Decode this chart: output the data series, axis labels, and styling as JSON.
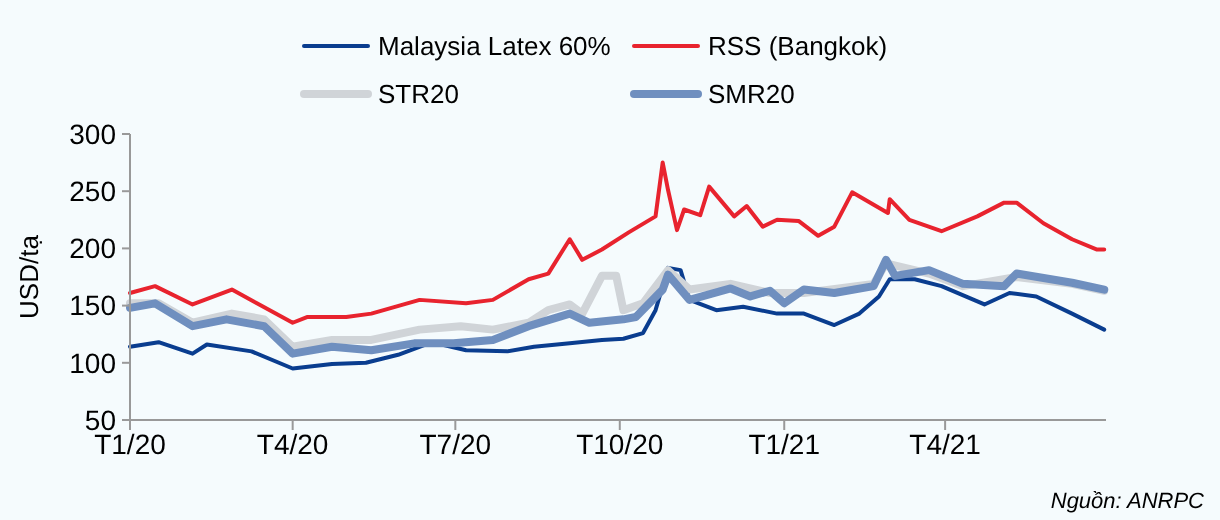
{
  "chart_data": {
    "type": "line",
    "ylabel": "USD/tạ",
    "legend": "top",
    "grid": false,
    "xlim": [
      "2020-01-01",
      "2021-06-30"
    ],
    "xticks": [
      {
        "value": "2020-01-01",
        "label": "T1/20"
      },
      {
        "value": "2020-04-01",
        "label": "T4/20"
      },
      {
        "value": "2020-07-01",
        "label": "T7/20"
      },
      {
        "value": "2020-10-01",
        "label": "T10/20"
      },
      {
        "value": "2021-01-01",
        "label": "T1/21"
      },
      {
        "value": "2021-04-01",
        "label": "T4/21"
      }
    ],
    "ylim": [
      50,
      300
    ],
    "yticks": [
      50,
      100,
      150,
      200,
      250,
      300
    ],
    "annotations": [
      "Nguồn: ANRPC"
    ],
    "series": [
      {
        "name": "Malaysia Latex 60%",
        "color": "#0a3d8f",
        "x": [
          "2020-01-01",
          "2020-01-17",
          "2020-02-05",
          "2020-02-13",
          "2020-03-09",
          "2020-04-01",
          "2020-04-23",
          "2020-05-12",
          "2020-05-30",
          "2020-06-18",
          "2020-07-07",
          "2020-07-30",
          "2020-08-14",
          "2020-09-03",
          "2020-09-21",
          "2020-10-03",
          "2020-10-14",
          "2020-10-21",
          "2020-10-28",
          "2020-11-04",
          "2020-11-09",
          "2020-11-24",
          "2020-12-09",
          "2020-12-28",
          "2021-01-12",
          "2021-01-29",
          "2021-02-12",
          "2021-02-23",
          "2021-03-01",
          "2021-03-15",
          "2021-03-30",
          "2021-04-23",
          "2021-05-07",
          "2021-05-22",
          "2021-06-11",
          "2021-06-29"
        ],
        "values": [
          114,
          118,
          108,
          116,
          110,
          95,
          99,
          100,
          107,
          118,
          111,
          110,
          114,
          117,
          120,
          121,
          126,
          146,
          183,
          181,
          155,
          146,
          149,
          143,
          143,
          133,
          143,
          158,
          173,
          173,
          167,
          151,
          161,
          158,
          143,
          129
        ]
      },
      {
        "name": "RSS (Bangkok)",
        "color": "#e8232e",
        "x": [
          "2020-01-01",
          "2020-01-15",
          "2020-02-05",
          "2020-02-27",
          "2020-03-12",
          "2020-04-01",
          "2020-04-09",
          "2020-05-01",
          "2020-05-15",
          "2020-06-11",
          "2020-07-07",
          "2020-07-22",
          "2020-08-11",
          "2020-08-22",
          "2020-09-03",
          "2020-09-10",
          "2020-09-21",
          "2020-10-06",
          "2020-10-21",
          "2020-10-25",
          "2020-10-28",
          "2020-11-02",
          "2020-11-06",
          "2020-11-15",
          "2020-11-20",
          "2020-12-04",
          "2020-12-11",
          "2020-12-20",
          "2020-12-28",
          "2021-01-09",
          "2021-01-20",
          "2021-01-29",
          "2021-02-08",
          "2021-02-28",
          "2021-03-01",
          "2021-03-12",
          "2021-03-30",
          "2021-04-19",
          "2021-05-04",
          "2021-05-11",
          "2021-05-26",
          "2021-06-11",
          "2021-06-25",
          "2021-06-29"
        ],
        "values": [
          161,
          167,
          151,
          164,
          152,
          135,
          140,
          140,
          143,
          155,
          152,
          155,
          173,
          178,
          208,
          190,
          199,
          214,
          228,
          275,
          251,
          216,
          234,
          229,
          254,
          228,
          237,
          219,
          225,
          224,
          211,
          219,
          249,
          231,
          243,
          225,
          215,
          228,
          240,
          240,
          222,
          208,
          199,
          199
        ]
      },
      {
        "name": "STR20",
        "color": "#d0d4d8",
        "x": [
          "2020-01-01",
          "2020-01-17",
          "2020-02-05",
          "2020-02-27",
          "2020-03-16",
          "2020-04-01",
          "2020-04-23",
          "2020-05-15",
          "2020-06-11",
          "2020-07-04",
          "2020-07-22",
          "2020-08-11",
          "2020-08-22",
          "2020-09-03",
          "2020-09-10",
          "2020-09-21",
          "2020-09-29",
          "2020-10-03",
          "2020-10-14",
          "2020-10-28",
          "2020-11-09",
          "2020-12-02",
          "2020-12-24",
          "2021-01-12",
          "2021-02-20",
          "2021-02-27",
          "2021-03-23",
          "2021-04-11",
          "2021-05-11",
          "2021-06-11",
          "2021-06-29"
        ],
        "values": [
          152,
          152,
          135,
          143,
          138,
          114,
          120,
          120,
          129,
          132,
          129,
          135,
          146,
          151,
          143,
          176,
          176,
          146,
          152,
          181,
          164,
          169,
          161,
          161,
          169,
          187,
          178,
          167,
          175,
          169,
          163
        ]
      },
      {
        "name": "SMR20",
        "color": "#6f8fbf",
        "x": [
          "2020-01-01",
          "2020-01-15",
          "2020-02-05",
          "2020-02-24",
          "2020-03-16",
          "2020-04-01",
          "2020-04-23",
          "2020-05-15",
          "2020-06-08",
          "2020-06-30",
          "2020-07-22",
          "2020-08-11",
          "2020-09-03",
          "2020-09-14",
          "2020-10-03",
          "2020-10-10",
          "2020-10-25",
          "2020-10-28",
          "2020-11-09",
          "2020-12-02",
          "2020-12-13",
          "2020-12-24",
          "2021-01-01",
          "2021-01-12",
          "2021-01-29",
          "2021-02-20",
          "2021-02-27",
          "2021-03-04",
          "2021-03-23",
          "2021-04-11",
          "2021-05-04",
          "2021-05-11",
          "2021-06-11",
          "2021-06-29"
        ],
        "values": [
          148,
          152,
          132,
          138,
          132,
          108,
          114,
          111,
          117,
          117,
          120,
          132,
          143,
          135,
          138,
          140,
          164,
          177,
          155,
          165,
          158,
          163,
          152,
          164,
          161,
          167,
          190,
          176,
          181,
          169,
          167,
          178,
          170,
          164
        ]
      }
    ]
  }
}
